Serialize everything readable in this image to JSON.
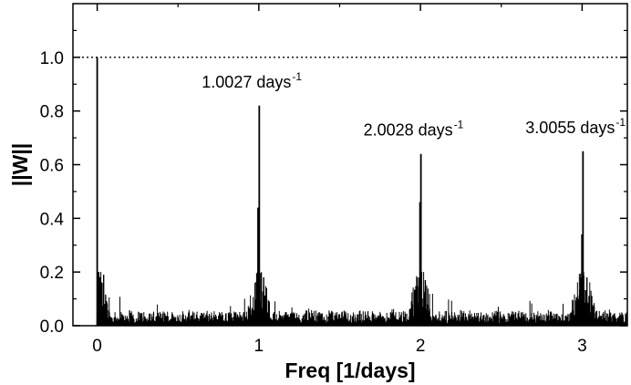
{
  "chart_data": {
    "type": "line",
    "title": "",
    "xlabel": "Freq [1/days]",
    "ylabel": "||W||",
    "xlim": [
      -0.15,
      3.28
    ],
    "ylim": [
      0.0,
      1.2
    ],
    "grid": false,
    "x_ticks": [
      0,
      1,
      2,
      3
    ],
    "x_tick_labels": [
      "0",
      "1",
      "2",
      "3"
    ],
    "y_ticks": [
      0.0,
      0.2,
      0.4,
      0.6,
      0.8,
      1.0
    ],
    "y_tick_labels": [
      "0.0",
      "0.2",
      "0.4",
      "0.6",
      "0.8",
      "1.0"
    ],
    "reference_line": {
      "y": 1.0,
      "style": "dotted"
    },
    "peaks": [
      {
        "x": 0.0,
        "y": 1.0
      },
      {
        "x": 1.0027,
        "y": 0.82
      },
      {
        "x": 2.0028,
        "y": 0.64
      },
      {
        "x": 3.0055,
        "y": 0.65
      }
    ],
    "secondary_spikes": [
      {
        "x": 0.012,
        "y": 0.18
      },
      {
        "x": 0.04,
        "y": 0.19
      },
      {
        "x": 0.99,
        "y": 0.18
      },
      {
        "x": 0.994,
        "y": 0.44
      },
      {
        "x": 1.03,
        "y": 0.18
      },
      {
        "x": 1.99,
        "y": 0.18
      },
      {
        "x": 1.996,
        "y": 0.46
      },
      {
        "x": 2.03,
        "y": 0.17
      },
      {
        "x": 2.99,
        "y": 0.18
      },
      {
        "x": 2.998,
        "y": 0.34
      },
      {
        "x": 3.03,
        "y": 0.18
      }
    ],
    "noise_level": {
      "typical": 0.03,
      "near_peaks": 0.12
    },
    "annotations": [
      {
        "label": "1.0027 days",
        "sup": "-1",
        "x": 1.0027
      },
      {
        "label": "2.0028 days",
        "sup": "-1",
        "x": 2.0028
      },
      {
        "label": "3.0055 days",
        "sup": "-1",
        "x": 3.0055
      }
    ],
    "color": "#000000"
  }
}
